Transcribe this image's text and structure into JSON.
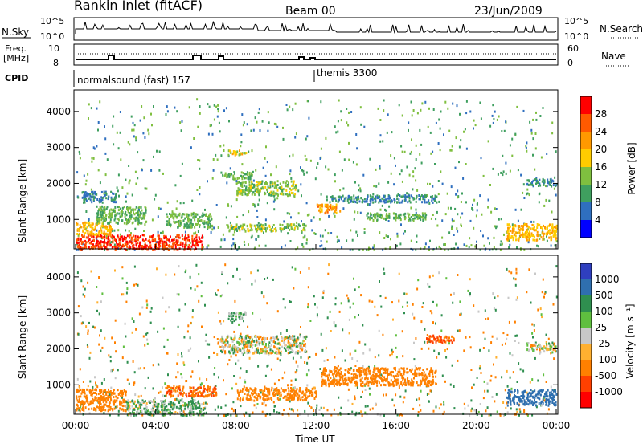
{
  "header": {
    "station": "Rankin Inlet (fitACF)",
    "beam": "Beam 00",
    "date": "23/Jun/2009"
  },
  "status_panels": {
    "nsky_label": "N.Sky",
    "nsearch_label": "N.Search",
    "freq_label_1": "Freq.",
    "freq_label_2": "[MHz]",
    "nave_label": "Nave",
    "cpid_label": "CPID",
    "nsky_top_tick": "10^5",
    "nsky_bottom_tick": "10^0",
    "freq_top_tick": "10",
    "freq_bottom_tick": "8",
    "nave_top_tick": "60",
    "nave_bottom_tick": "0",
    "nsky_right_top_tick": "10^5",
    "nsky_right_bottom_tick": "10^0",
    "cpid_segments": [
      {
        "label": "normalsound (fast) 157",
        "start_hour": 0
      },
      {
        "label": "themis 3300",
        "start_hour": 12
      }
    ]
  },
  "chart_data": [
    {
      "type": "heatmap",
      "panel": "power",
      "ylabel": "Slant Range [km]",
      "yticks": [
        1000,
        2000,
        3000,
        4000
      ],
      "ylim": [
        180,
        4600
      ],
      "colorbar_label": "Power [dB]",
      "colorbar_ticks": [
        "28",
        "24",
        "20",
        "16",
        "12",
        "8",
        "4"
      ],
      "colorbar_colors": [
        "#ff0000",
        "#ff5a00",
        "#ff9900",
        "#ffcc00",
        "#7fbf3f",
        "#3f9f5f",
        "#2f6fbf",
        "#0000ff"
      ],
      "features": [
        {
          "t0": 0.0,
          "t1": 6.3,
          "r0": 180,
          "r1": 600,
          "level": 26
        },
        {
          "t0": 0.0,
          "t1": 1.8,
          "r0": 600,
          "r1": 950,
          "level": 18
        },
        {
          "t0": 1.0,
          "t1": 3.5,
          "r0": 900,
          "r1": 1400,
          "level": 10
        },
        {
          "t0": 0.3,
          "t1": 2.0,
          "r0": 1500,
          "r1": 1800,
          "level": 6
        },
        {
          "t0": 4.5,
          "t1": 6.8,
          "r0": 800,
          "r1": 1200,
          "level": 10
        },
        {
          "t0": 7.2,
          "t1": 8.8,
          "r0": 2150,
          "r1": 2350,
          "level": 10
        },
        {
          "t0": 7.5,
          "t1": 8.5,
          "r0": 2800,
          "r1": 2950,
          "level": 16
        },
        {
          "t0": 8.0,
          "t1": 11.0,
          "r0": 1700,
          "r1": 2100,
          "level": 12
        },
        {
          "t0": 7.5,
          "t1": 11.5,
          "r0": 700,
          "r1": 900,
          "level": 12
        },
        {
          "t0": 12.0,
          "t1": 13.2,
          "r0": 1200,
          "r1": 1450,
          "level": 20
        },
        {
          "t0": 12.5,
          "t1": 18.0,
          "r0": 1500,
          "r1": 1700,
          "level": 6
        },
        {
          "t0": 14.5,
          "t1": 17.5,
          "r0": 1000,
          "r1": 1200,
          "level": 10
        },
        {
          "t0": 21.5,
          "t1": 24.0,
          "r0": 450,
          "r1": 900,
          "level": 18
        },
        {
          "t0": 22.5,
          "t1": 24.0,
          "r0": 1950,
          "r1": 2150,
          "level": 6
        }
      ]
    },
    {
      "type": "heatmap",
      "panel": "velocity",
      "xlabel": "Time UT",
      "xticks": [
        "00:00",
        "04:00",
        "08:00",
        "12:00",
        "16:00",
        "20:00",
        "00:00"
      ],
      "ylabel": "Slant Range [km]",
      "yticks": [
        1000,
        2000,
        3000,
        4000
      ],
      "ylim": [
        180,
        4600
      ],
      "colorbar_label": "Velocity [m s⁻¹]",
      "colorbar_ticks": [
        "1000",
        "500",
        "100",
        "25",
        "-25",
        "-100",
        "-500",
        "-1000"
      ],
      "colorbar_colors": [
        "#2f3fbf",
        "#2f6faf",
        "#2f8f4f",
        "#5fbf3f",
        "#c8c8c8",
        "#ffb030",
        "#ff8000",
        "#ff4000",
        "#ff0000"
      ],
      "features": [
        {
          "t0": 0.0,
          "t1": 2.5,
          "r0": 300,
          "r1": 900,
          "v": -200
        },
        {
          "t0": 2.5,
          "t1": 6.5,
          "r0": 180,
          "r1": 600,
          "v": 60
        },
        {
          "t0": 4.5,
          "t1": 7.0,
          "r0": 700,
          "r1": 1000,
          "v": -300
        },
        {
          "t0": 7.2,
          "t1": 11.5,
          "r0": 1900,
          "r1": 2400,
          "v": 0
        },
        {
          "t0": 7.6,
          "t1": 8.5,
          "r0": 2800,
          "r1": 3050,
          "v": 80
        },
        {
          "t0": 8.0,
          "t1": 12.0,
          "r0": 600,
          "r1": 950,
          "v": -150
        },
        {
          "t0": 12.2,
          "t1": 18.0,
          "r0": 1000,
          "r1": 1500,
          "v": -200
        },
        {
          "t0": 17.5,
          "t1": 19.0,
          "r0": 2200,
          "r1": 2400,
          "v": -300
        },
        {
          "t0": 21.5,
          "t1": 24.0,
          "r0": 450,
          "r1": 900,
          "v": 400
        },
        {
          "t0": 22.5,
          "t1": 24.0,
          "r0": 1900,
          "r1": 2200,
          "v": 0
        }
      ]
    }
  ]
}
